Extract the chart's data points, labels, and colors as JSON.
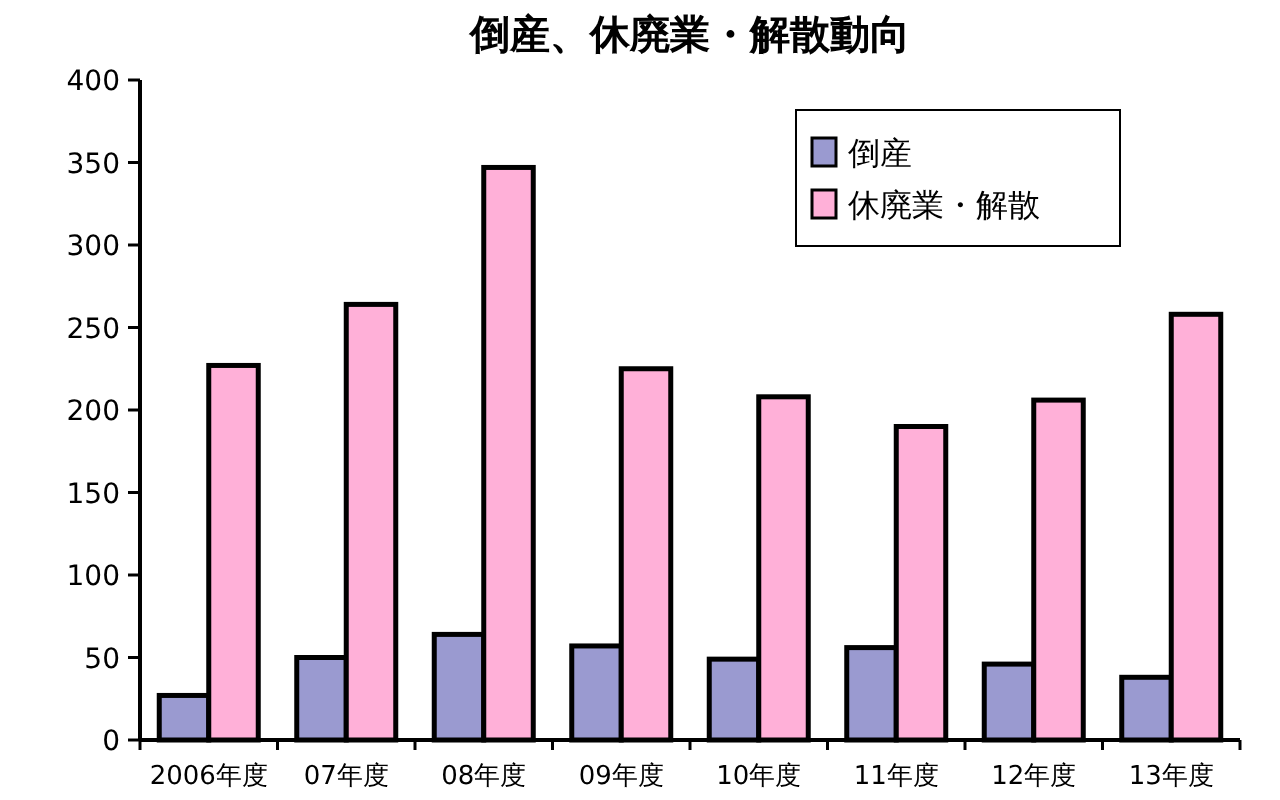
{
  "chart_data": {
    "type": "bar",
    "title": "倒産、休廃業・解散動向",
    "categories": [
      "2006年度",
      "07年度",
      "08年度",
      "09年度",
      "10年度",
      "11年度",
      "12年度",
      "13年度"
    ],
    "series": [
      {
        "name": "倒産",
        "color": "#9a9ad0",
        "values": [
          27,
          50,
          64,
          57,
          49,
          56,
          46,
          38
        ]
      },
      {
        "name": "休廃業・解散",
        "color": "#ffb0d8",
        "values": [
          227,
          264,
          347,
          225,
          208,
          190,
          206,
          258
        ]
      }
    ],
    "ylim": [
      0,
      400
    ],
    "yticks": [
      0,
      50,
      100,
      150,
      200,
      250,
      300,
      350,
      400
    ],
    "grid": false,
    "legend": "top right"
  }
}
